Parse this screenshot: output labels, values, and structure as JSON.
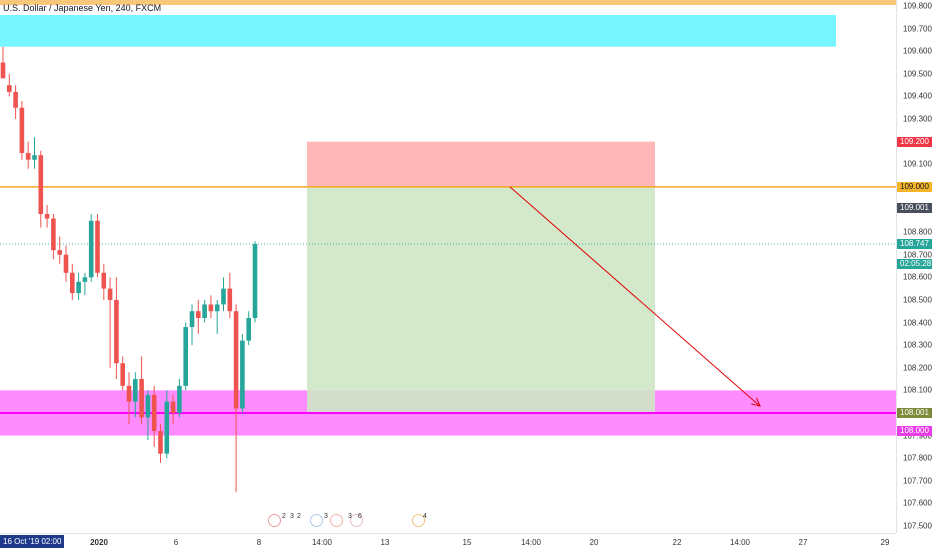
{
  "legend": {
    "title": "U.S. Dollar / Japanese Yen, 240, FXCM"
  },
  "price_axis": {
    "ticks": [
      "109.800",
      "109.700",
      "109.600",
      "109.500",
      "109.400",
      "109.300",
      "109.200",
      "109.100",
      "109.000",
      "108.900",
      "108.800",
      "108.700",
      "108.600",
      "108.500",
      "108.400",
      "108.300",
      "108.200",
      "108.100",
      "108.000",
      "107.900",
      "107.800",
      "107.700",
      "107.600",
      "107.500"
    ],
    "labels": [
      {
        "text": "109.200",
        "price": 109.2,
        "bg": "#f23645",
        "fg": "#ffffff"
      },
      {
        "text": "109.000",
        "price": 109.0,
        "bg": "#f5b52a",
        "fg": "#131722"
      },
      {
        "text": "109.001",
        "price": 108.905,
        "bg": "#4a4f5c",
        "fg": "#ffffff"
      },
      {
        "text": "108.747",
        "price": 108.747,
        "bg": "#26a69a",
        "fg": "#ffffff"
      },
      {
        "text": "02:05:28",
        "price": 108.66,
        "bg": "#26a69a",
        "fg": "#ffffff"
      },
      {
        "text": "108.001",
        "price": 108.001,
        "bg": "#7d8a3a",
        "fg": "#ffffff"
      },
      {
        "text": "108.000",
        "price": 107.92,
        "bg": "#e83ee8",
        "fg": "#ffffff"
      }
    ]
  },
  "time_axis": {
    "cursor_label": "16 Oct '19  02:00",
    "ticks": [
      {
        "text": "2020",
        "bold": true
      },
      {
        "text": "6"
      },
      {
        "text": "8"
      },
      {
        "text": "14:00"
      },
      {
        "text": "13"
      },
      {
        "text": "15"
      },
      {
        "text": "14:00"
      },
      {
        "text": "20"
      },
      {
        "text": "22"
      },
      {
        "text": "14:00"
      },
      {
        "text": "27"
      },
      {
        "text": "29"
      }
    ]
  },
  "events": {
    "numbers": [
      "2",
      "3",
      "2",
      "3",
      "3",
      "6",
      "4"
    ]
  },
  "colors": {
    "up": "#26a69a",
    "down": "#ef5350",
    "orange": "#f5a623",
    "cyan": "#5ff5ff",
    "magenta": "#ff00ff",
    "stop": "#ffb3b3",
    "target": "#cfe6c6"
  },
  "chart_data": {
    "type": "candlestick",
    "symbol": "U.S. Dollar / Japanese Yen, 240, FXCM",
    "ylim": [
      107.45,
      109.84
    ],
    "last_price": 108.747,
    "horizontal_levels": [
      109.0,
      108.0,
      109.84
    ],
    "zones": [
      {
        "from": 109.62,
        "to": 109.76,
        "color": "cyan"
      },
      {
        "from": 107.9,
        "to": 108.1,
        "color": "magenta"
      }
    ],
    "position": {
      "entry": 109.0,
      "stop": 109.2,
      "target": 108.0
    },
    "candles": [
      {
        "o": 109.55,
        "h": 109.62,
        "l": 109.5,
        "c": 109.48
      },
      {
        "o": 109.45,
        "h": 109.5,
        "l": 109.4,
        "c": 109.42
      },
      {
        "o": 109.42,
        "h": 109.45,
        "l": 109.3,
        "c": 109.35
      },
      {
        "o": 109.35,
        "h": 109.38,
        "l": 109.12,
        "c": 109.15
      },
      {
        "o": 109.15,
        "h": 109.2,
        "l": 109.08,
        "c": 109.12
      },
      {
        "o": 109.12,
        "h": 109.22,
        "l": 109.08,
        "c": 109.14
      },
      {
        "o": 109.14,
        "h": 109.16,
        "l": 108.82,
        "c": 108.88
      },
      {
        "o": 108.88,
        "h": 108.92,
        "l": 108.82,
        "c": 108.86
      },
      {
        "o": 108.86,
        "h": 108.88,
        "l": 108.68,
        "c": 108.72
      },
      {
        "o": 108.72,
        "h": 108.78,
        "l": 108.66,
        "c": 108.7
      },
      {
        "o": 108.7,
        "h": 108.74,
        "l": 108.58,
        "c": 108.62
      },
      {
        "o": 108.62,
        "h": 108.66,
        "l": 108.5,
        "c": 108.53
      },
      {
        "o": 108.53,
        "h": 108.62,
        "l": 108.5,
        "c": 108.58
      },
      {
        "o": 108.58,
        "h": 108.62,
        "l": 108.52,
        "c": 108.6
      },
      {
        "o": 108.6,
        "h": 108.88,
        "l": 108.58,
        "c": 108.85
      },
      {
        "o": 108.85,
        "h": 108.88,
        "l": 108.6,
        "c": 108.62
      },
      {
        "o": 108.62,
        "h": 108.66,
        "l": 108.5,
        "c": 108.55
      },
      {
        "o": 108.55,
        "h": 108.6,
        "l": 108.2,
        "c": 108.5
      },
      {
        "o": 108.5,
        "h": 108.6,
        "l": 108.15,
        "c": 108.22
      },
      {
        "o": 108.22,
        "h": 108.25,
        "l": 108.1,
        "c": 108.12
      },
      {
        "o": 108.12,
        "h": 108.18,
        "l": 107.95,
        "c": 108.05
      },
      {
        "o": 108.05,
        "h": 108.18,
        "l": 107.98,
        "c": 108.15
      },
      {
        "o": 108.15,
        "h": 108.25,
        "l": 107.95,
        "c": 107.98
      },
      {
        "o": 107.98,
        "h": 108.1,
        "l": 107.88,
        "c": 108.08
      },
      {
        "o": 108.08,
        "h": 108.12,
        "l": 107.85,
        "c": 107.92
      },
      {
        "o": 107.92,
        "h": 107.95,
        "l": 107.78,
        "c": 107.82
      },
      {
        "o": 107.82,
        "h": 108.1,
        "l": 107.8,
        "c": 108.05
      },
      {
        "o": 108.05,
        "h": 108.08,
        "l": 107.95,
        "c": 108.0
      },
      {
        "o": 108.0,
        "h": 108.15,
        "l": 107.98,
        "c": 108.12
      },
      {
        "o": 108.12,
        "h": 108.4,
        "l": 108.1,
        "c": 108.38
      },
      {
        "o": 108.38,
        "h": 108.48,
        "l": 108.3,
        "c": 108.45
      },
      {
        "o": 108.45,
        "h": 108.5,
        "l": 108.35,
        "c": 108.42
      },
      {
        "o": 108.42,
        "h": 108.5,
        "l": 108.4,
        "c": 108.48
      },
      {
        "o": 108.48,
        "h": 108.52,
        "l": 108.42,
        "c": 108.45
      },
      {
        "o": 108.45,
        "h": 108.5,
        "l": 108.35,
        "c": 108.48
      },
      {
        "o": 108.48,
        "h": 108.6,
        "l": 108.45,
        "c": 108.55
      },
      {
        "o": 108.55,
        "h": 108.62,
        "l": 108.42,
        "c": 108.45
      },
      {
        "o": 108.45,
        "h": 108.48,
        "l": 107.65,
        "c": 108.02
      },
      {
        "o": 108.02,
        "h": 108.35,
        "l": 108.0,
        "c": 108.32
      },
      {
        "o": 108.32,
        "h": 108.45,
        "l": 108.3,
        "c": 108.42
      },
      {
        "o": 108.42,
        "h": 108.76,
        "l": 108.4,
        "c": 108.747
      }
    ]
  }
}
